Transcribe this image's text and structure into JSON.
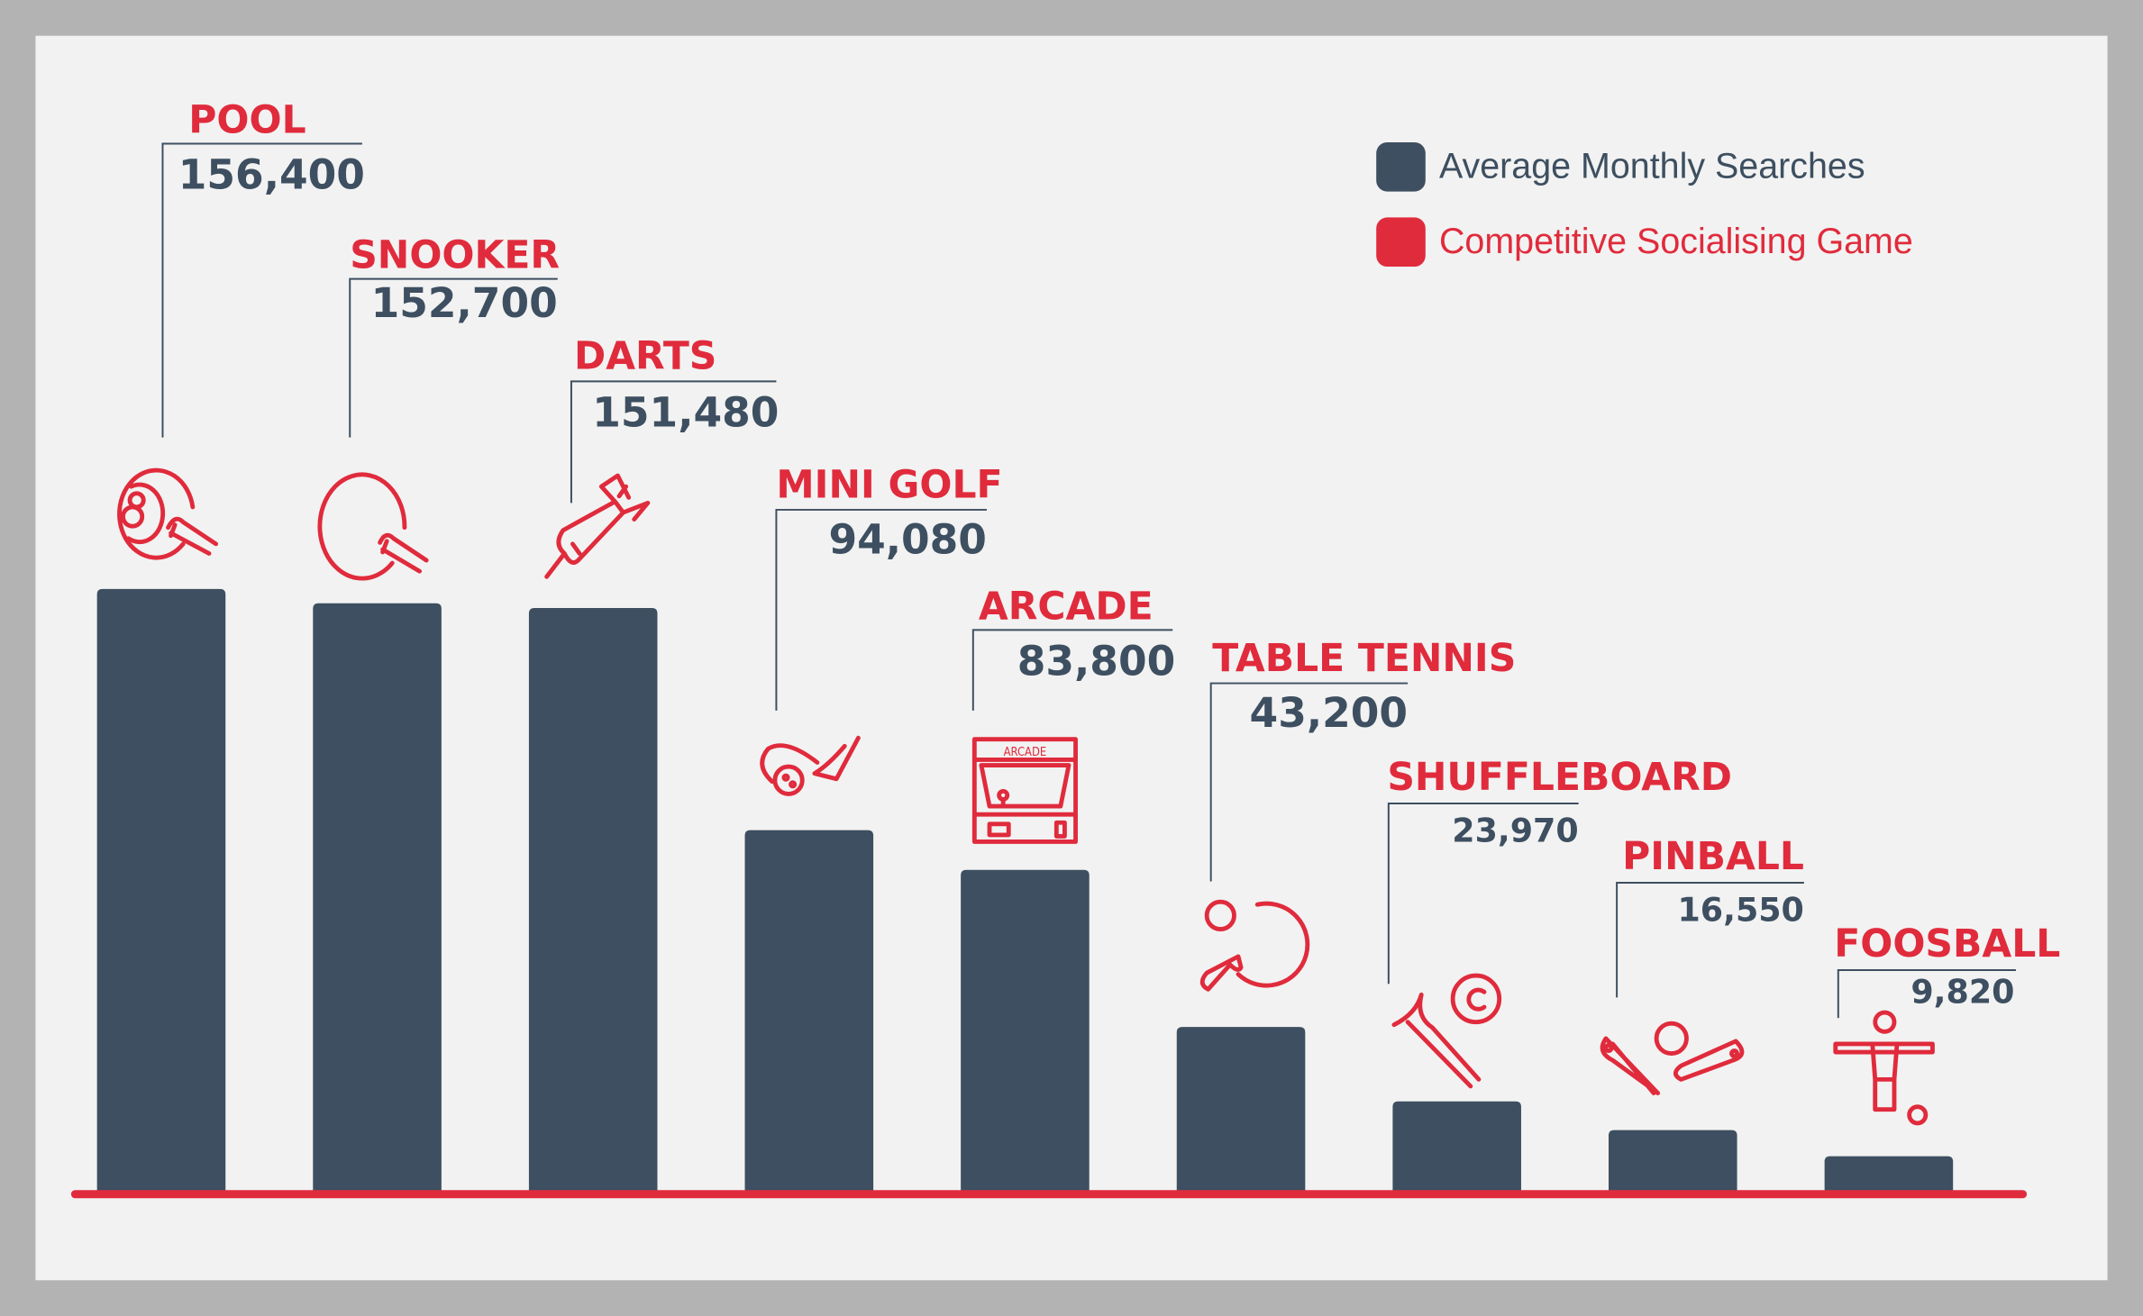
{
  "chart_data": {
    "type": "bar",
    "categories": [
      "POOL",
      "SNOOKER",
      "DARTS",
      "MINI GOLF",
      "ARCADE",
      "TABLE TENNIS",
      "SHUFFLEBOARD",
      "PINBALL",
      "FOOSBALL"
    ],
    "series": [
      {
        "name": "Average Monthly Searches",
        "values": [
          156400,
          152700,
          151480,
          94080,
          83800,
          43200,
          23970,
          16550,
          9820
        ]
      }
    ],
    "data_labels": [
      "156,400",
      "152,700",
      "151,480",
      "94,080",
      "83,800",
      "43,200",
      "23,970",
      "16,550",
      "9,820"
    ],
    "icons": [
      "pool-ball-cue-icon",
      "snooker-ball-cue-icon",
      "dart-icon",
      "mini-golf-club-icon",
      "arcade-cabinet-icon",
      "table-tennis-paddle-icon",
      "shuffleboard-icon",
      "pinball-flippers-icon",
      "foosball-player-icon"
    ],
    "arcade_icon_text": "ARCADE",
    "legend": [
      {
        "label": "Average Monthly Searches",
        "color": "#3d4f60"
      },
      {
        "label": "Competitive Socialising Game",
        "color": "#e02b3c"
      }
    ],
    "legend_placement": "top-right",
    "ylim": [
      0,
      156400
    ],
    "grid": false,
    "colors": {
      "bar": "#3d4f60",
      "accent": "#e02b3c",
      "background": "#f2f2f2",
      "frame": "#b3b3b3"
    }
  }
}
